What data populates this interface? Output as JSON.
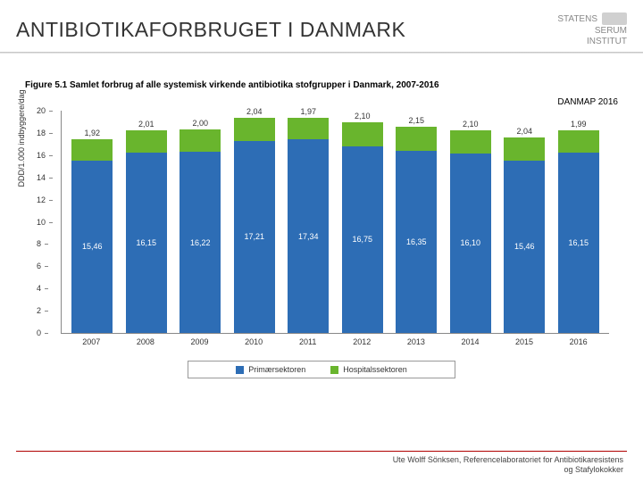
{
  "header": {
    "title": "ANTIBIOTIKAFORBRUGET I DANMARK",
    "logo_lines": [
      "STATENS",
      "SERUM",
      "INSTITUT"
    ]
  },
  "figure": {
    "caption": "Figure 5.1 Samlet forbrug af alle systemisk virkende antibiotika stofgrupper i Danmark, 2007-2016",
    "source": "DANMAP 2016",
    "type": "stacked-bar",
    "ylabel": "DDD/1.000 indbyggere/dag",
    "ymax": 20,
    "ytick_step": 2,
    "yticks": [
      0,
      2,
      4,
      6,
      8,
      10,
      12,
      14,
      16,
      18,
      20
    ],
    "categories": [
      "2007",
      "2008",
      "2009",
      "2010",
      "2011",
      "2012",
      "2013",
      "2014",
      "2015",
      "2016"
    ],
    "series": {
      "prim": {
        "label": "Primærsektoren",
        "color": "#2d6db5",
        "values": [
          15.46,
          16.15,
          16.22,
          17.21,
          17.34,
          16.75,
          16.35,
          16.1,
          15.46,
          16.15
        ]
      },
      "hosp": {
        "label": "Hospitalssektoren",
        "color": "#69b52d",
        "values": [
          1.92,
          2.01,
          2.0,
          2.04,
          1.97,
          2.1,
          2.15,
          2.1,
          2.04,
          1.99
        ]
      }
    },
    "label_fontsize": 9,
    "background_color": "#ffffff",
    "axis_color": "#888888"
  },
  "footer": {
    "line1": "Ute Wolff Sönksen, Referencelaboratoriet for Antibiotikaresistens",
    "line2": "og Stafylokokker"
  }
}
